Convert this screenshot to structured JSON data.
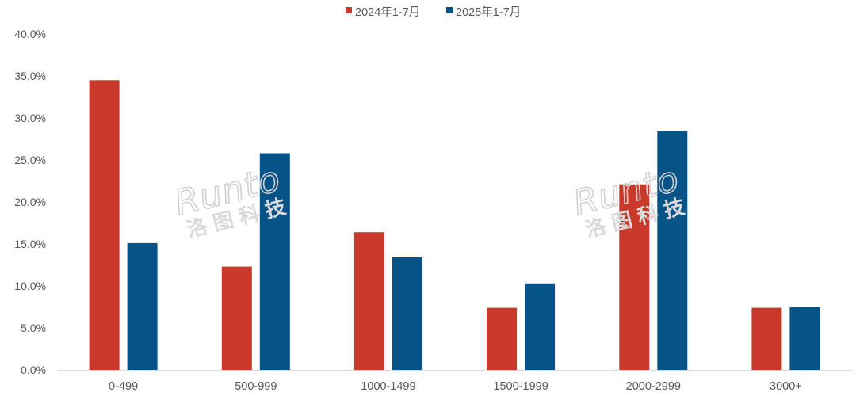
{
  "chart_data": {
    "type": "bar",
    "categories": [
      "0-499",
      "500-999",
      "1000-1499",
      "1500-1999",
      "2000-2999",
      "3000+"
    ],
    "series": [
      {
        "name": "2024年1-7月",
        "color": "#C9392A",
        "values": [
          34.5,
          12.3,
          16.4,
          7.4,
          22.1,
          7.4
        ]
      },
      {
        "name": "2025年1-7月",
        "color": "#065388",
        "values": [
          15.1,
          25.8,
          13.4,
          10.3,
          28.4,
          7.5
        ]
      }
    ],
    "yticks": [
      "0.0%",
      "5.0%",
      "10.0%",
      "15.0%",
      "20.0%",
      "25.0%",
      "30.0%",
      "35.0%",
      "40.0%"
    ],
    "ylim": [
      0,
      40
    ],
    "legend_position": "top-center",
    "grid": false
  },
  "watermark": {
    "latin": "Runto",
    "cjk": "洛图科技"
  }
}
